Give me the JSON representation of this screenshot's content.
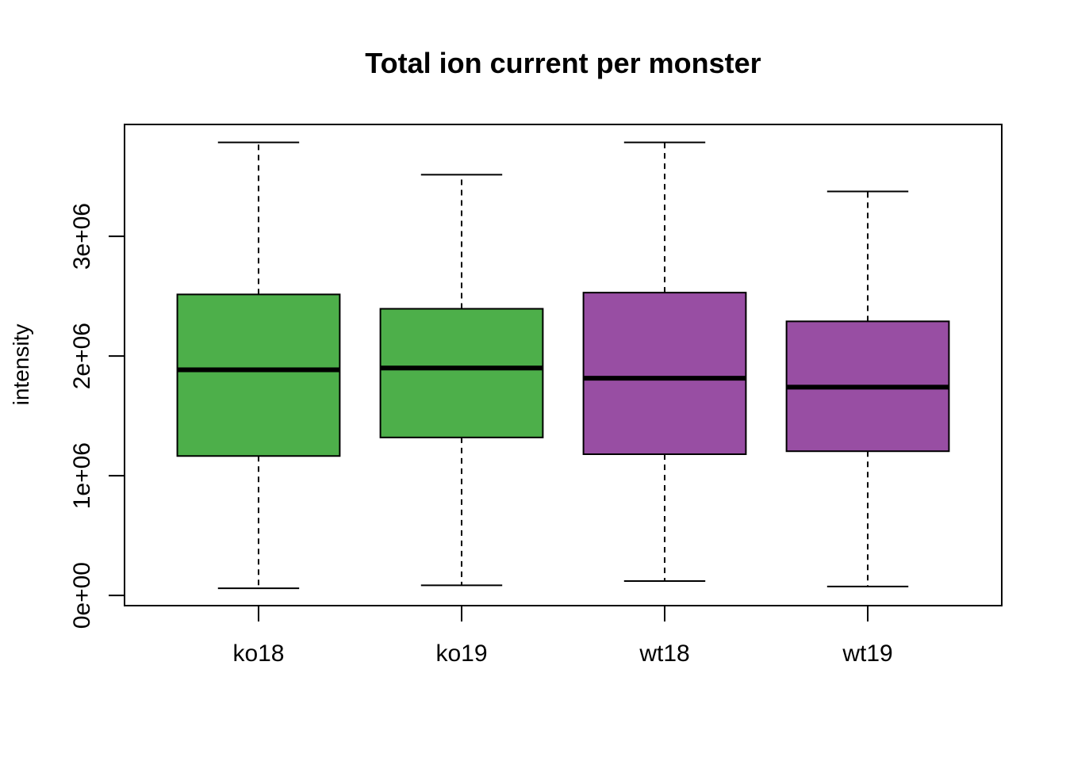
{
  "chart_data": {
    "type": "boxplot",
    "title": "Total ion current per monster",
    "xlabel": "",
    "ylabel": "intensity",
    "categories": [
      "ko18",
      "ko19",
      "wt18",
      "wt19"
    ],
    "colors": [
      "#4daf4a",
      "#4daf4a",
      "#984ea3",
      "#984ea3"
    ],
    "boxes": [
      {
        "name": "ko18",
        "whisker_low": 60000,
        "q1": 1165000,
        "median": 1885000,
        "q3": 2515000,
        "whisker_high": 3785000
      },
      {
        "name": "ko19",
        "whisker_low": 85000,
        "q1": 1320000,
        "median": 1900000,
        "q3": 2395000,
        "whisker_high": 3515000
      },
      {
        "name": "wt18",
        "whisker_low": 120000,
        "q1": 1180000,
        "median": 1815000,
        "q3": 2530000,
        "whisker_high": 3785000
      },
      {
        "name": "wt19",
        "whisker_low": 75000,
        "q1": 1205000,
        "median": 1740000,
        "q3": 2290000,
        "whisker_high": 3375000
      }
    ],
    "yticks": [
      0,
      1000000,
      2000000,
      3000000
    ],
    "ytick_labels": [
      "0e+00",
      "1e+06",
      "2e+06",
      "3e+06"
    ],
    "ylim": [
      -85000,
      3935000
    ],
    "grid": false,
    "legend": "none"
  }
}
